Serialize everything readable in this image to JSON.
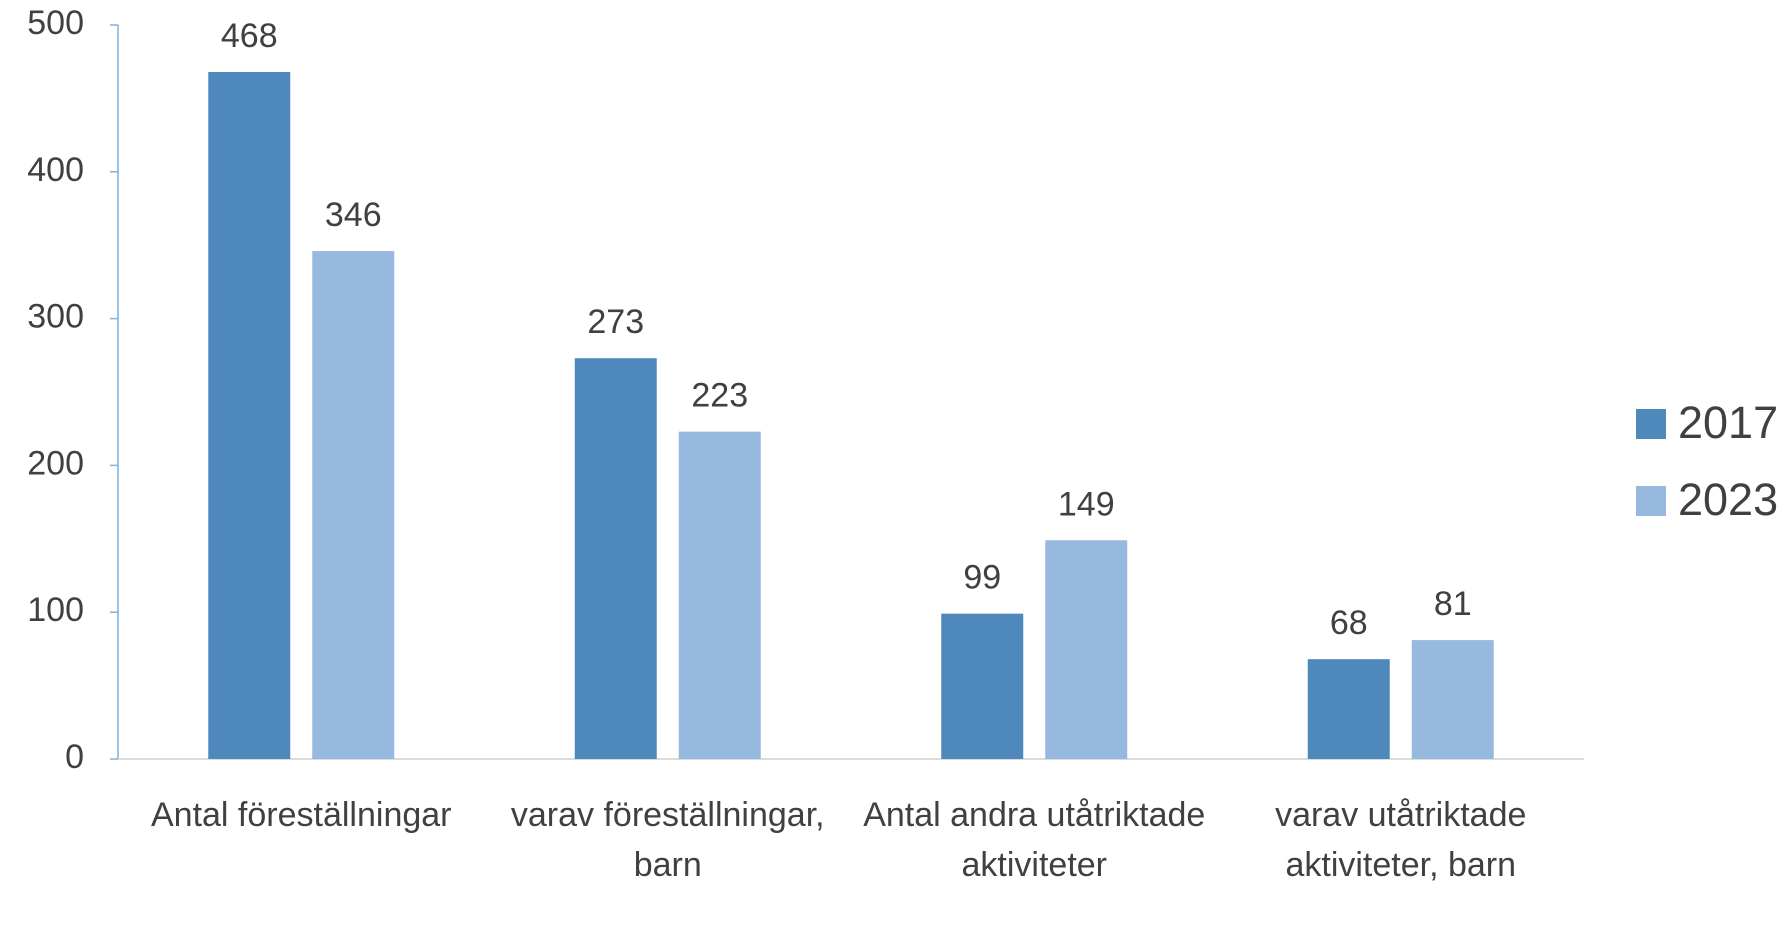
{
  "chart_data": {
    "type": "bar",
    "categories": [
      "Antal föreställningar",
      "varav föreställningar, barn",
      "Antal andra utåtriktade aktiviteter",
      "varav utåtriktade aktiviteter, barn"
    ],
    "series": [
      {
        "name": "2017",
        "color": "#4f88bd",
        "values": [
          468,
          273,
          99,
          68
        ]
      },
      {
        "name": "2023",
        "color": "#98b9df",
        "values": [
          346,
          223,
          149,
          81
        ]
      }
    ],
    "ylim": [
      0,
      500
    ],
    "yticks": [
      0,
      100,
      200,
      300,
      400,
      500
    ],
    "grid": false,
    "legend": "right"
  }
}
